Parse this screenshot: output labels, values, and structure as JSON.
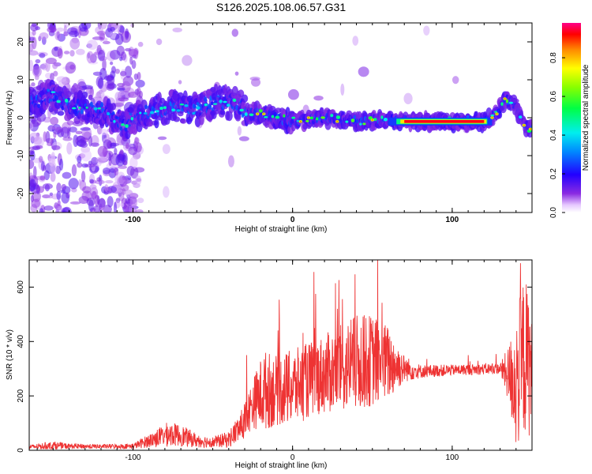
{
  "title": "S126.2025.108.06.57.G31",
  "chart_data": [
    {
      "type": "heatmap",
      "xlabel": "Height of straight line (km)",
      "ylabel": "Frequency (Hz)",
      "xlim": [
        -165,
        150
      ],
      "ylim": [
        -25,
        25
      ],
      "xticks": [
        -100,
        0,
        100
      ],
      "yticks": [
        20,
        10,
        0,
        -10,
        -20
      ],
      "colorbar": {
        "label": "Normalized spectral amplitude",
        "range": [
          0,
          0.98
        ],
        "ticks": [
          0.0,
          0.2,
          0.4,
          0.6,
          0.8
        ]
      },
      "ridge": [
        {
          "x": -165,
          "y": 4
        },
        {
          "x": -150,
          "y": 6
        },
        {
          "x": -140,
          "y": 3
        },
        {
          "x": -120,
          "y": 2
        },
        {
          "x": -105,
          "y": -2
        },
        {
          "x": -100,
          "y": 0
        },
        {
          "x": -85,
          "y": 2
        },
        {
          "x": -75,
          "y": 3
        },
        {
          "x": -60,
          "y": 2
        },
        {
          "x": -50,
          "y": 4
        },
        {
          "x": -35,
          "y": 4
        },
        {
          "x": -28,
          "y": 1
        },
        {
          "x": -20,
          "y": 1
        },
        {
          "x": -10,
          "y": 0
        },
        {
          "x": 0,
          "y": -1
        },
        {
          "x": 20,
          "y": 0
        },
        {
          "x": 40,
          "y": -1
        },
        {
          "x": 60,
          "y": -0.5
        },
        {
          "x": 70,
          "y": -1
        },
        {
          "x": 120,
          "y": -1
        },
        {
          "x": 128,
          "y": 1
        },
        {
          "x": 133,
          "y": 5
        },
        {
          "x": 140,
          "y": 3
        },
        {
          "x": 145,
          "y": -2
        },
        {
          "x": 150,
          "y": -3
        }
      ],
      "ridge_peak_range": [
        70,
        120
      ]
    },
    {
      "type": "line",
      "xlabel": "Height of straight line (km)",
      "ylabel": "SNR (10 * v/v)",
      "xlim": [
        -165,
        150
      ],
      "ylim": [
        0,
        700
      ],
      "xticks": [
        -100,
        0,
        100
      ],
      "yticks": [
        0,
        200,
        400,
        600
      ],
      "series": [
        {
          "color": "#ee3333",
          "envelope": [
            {
              "x": -165,
              "base": 12,
              "spread": 8
            },
            {
              "x": -150,
              "base": 18,
              "spread": 15
            },
            {
              "x": -140,
              "base": 15,
              "spread": 10
            },
            {
              "x": -120,
              "base": 14,
              "spread": 8
            },
            {
              "x": -100,
              "base": 15,
              "spread": 10
            },
            {
              "x": -90,
              "base": 35,
              "spread": 25
            },
            {
              "x": -78,
              "base": 60,
              "spread": 45
            },
            {
              "x": -70,
              "base": 55,
              "spread": 40
            },
            {
              "x": -60,
              "base": 35,
              "spread": 25
            },
            {
              "x": -50,
              "base": 30,
              "spread": 20
            },
            {
              "x": -40,
              "base": 40,
              "spread": 30
            },
            {
              "x": -32,
              "base": 90,
              "spread": 60
            },
            {
              "x": -25,
              "base": 170,
              "spread": 90
            },
            {
              "x": -18,
              "base": 220,
              "spread": 150
            },
            {
              "x": -10,
              "base": 220,
              "spread": 130
            },
            {
              "x": 0,
              "base": 230,
              "spread": 140
            },
            {
              "x": 15,
              "base": 270,
              "spread": 140
            },
            {
              "x": 30,
              "base": 300,
              "spread": 160
            },
            {
              "x": 40,
              "base": 320,
              "spread": 180
            },
            {
              "x": 50,
              "base": 330,
              "spread": 170
            },
            {
              "x": 60,
              "base": 320,
              "spread": 140
            },
            {
              "x": 70,
              "base": 300,
              "spread": 50
            },
            {
              "x": 80,
              "base": 290,
              "spread": 25
            },
            {
              "x": 100,
              "base": 295,
              "spread": 20
            },
            {
              "x": 130,
              "base": 300,
              "spread": 20
            },
            {
              "x": 135,
              "base": 280,
              "spread": 100
            },
            {
              "x": 140,
              "base": 250,
              "spread": 250
            },
            {
              "x": 145,
              "base": 350,
              "spread": 300
            },
            {
              "x": 150,
              "base": 300,
              "spread": 250
            }
          ]
        }
      ]
    }
  ]
}
